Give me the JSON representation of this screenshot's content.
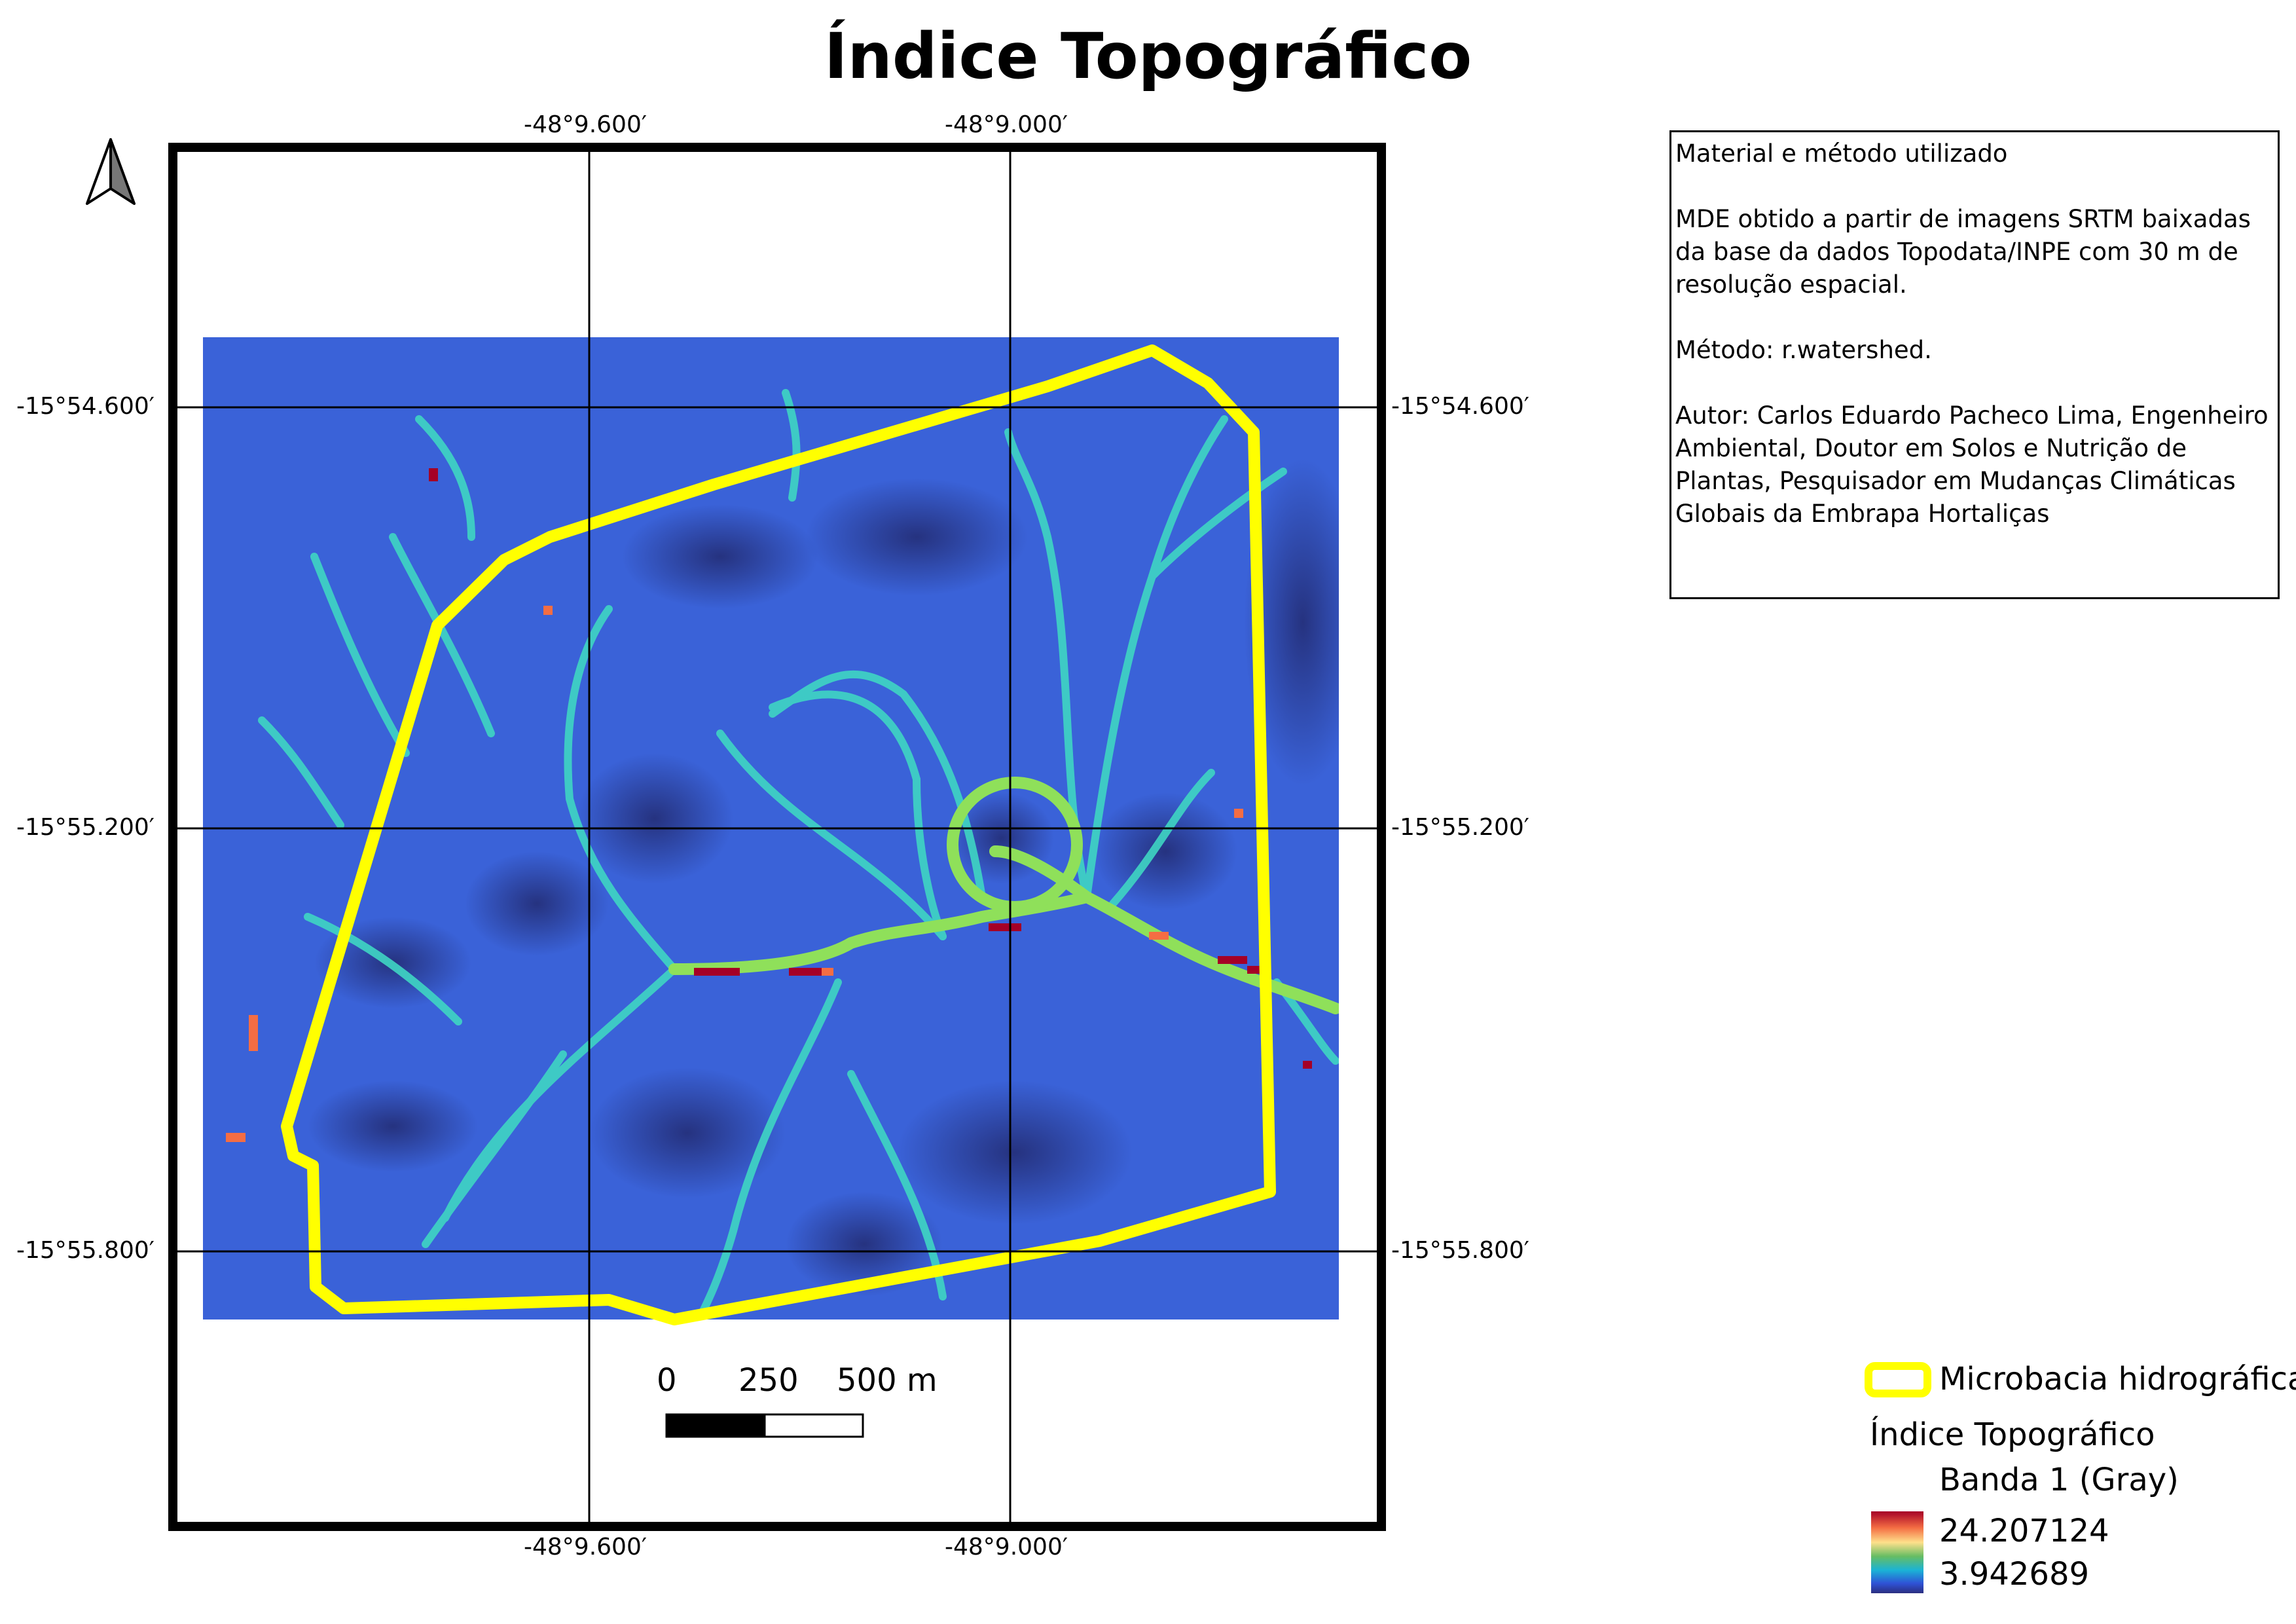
{
  "title": "Índice Topográfico",
  "coords": {
    "top": [
      "-48°9.600′",
      "-48°9.000′"
    ],
    "bottom": [
      "-48°9.600′",
      "-48°9.000′"
    ],
    "left": [
      "-15°54.600′",
      "-15°55.200′",
      "-15°55.800′"
    ],
    "right": [
      "-15°54.600′",
      "-15°55.200′",
      "-15°55.800′"
    ]
  },
  "info": {
    "heading": "Material e método utilizado",
    "source": "MDE obtido a partir de imagens SRTM baixadas da base da dados Topodata/INPE com 30 m de resolução espacial.",
    "method": "Método: r.watershed.",
    "author": "Autor: Carlos Eduardo Pacheco Lima, Engenheiro Ambiental, Doutor em Solos e Nutrição de Plantas, Pesquisador em Mudanças Climáticas Globais da Embrapa Hortaliças"
  },
  "scale": {
    "labels": [
      "0",
      "250",
      "500 m"
    ]
  },
  "legend": {
    "watershed_label": "Microbacia hidrográfica",
    "watershed_color": "#ffff00",
    "layer_title": "Índice Topográfico",
    "band_label": "Banda 1 (Gray)",
    "max": "24.207124",
    "min": "3.942689",
    "ramp_colors": [
      "#a50026",
      "#f46d43",
      "#fee08b",
      "#66bd63",
      "#1ab3d6",
      "#2f52d6",
      "#2b2f80"
    ]
  },
  "icons": {
    "north_arrow": "north-arrow-icon"
  }
}
